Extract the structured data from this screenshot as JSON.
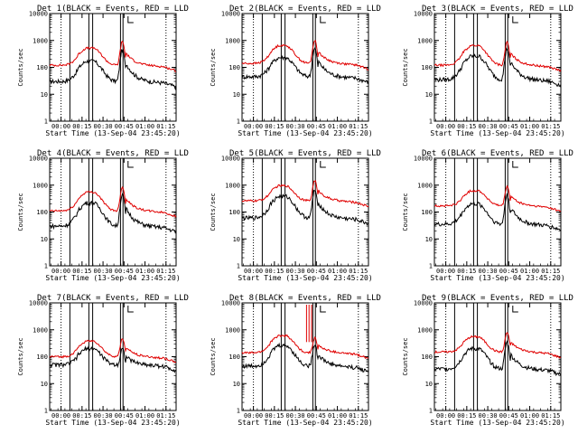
{
  "chart_data": [
    {
      "type": "line",
      "title": "Det 1(BLACK = Events, RED = LLD",
      "det": 1,
      "xlabel": "Start Time (13-Sep-04 23:45:20)",
      "ylabel": "Counts/sec",
      "ylim": [
        1,
        10000
      ],
      "yscale": "log",
      "ytick_labels": [
        "1",
        "10",
        "100",
        "1000",
        "10000"
      ],
      "xtick_labels": [
        "00:00",
        "00:15",
        "00:30",
        "00:45",
        "01:00",
        "01:15"
      ],
      "vlines_solid": [
        0.16,
        0.31,
        0.34,
        0.56,
        0.58
      ],
      "vlines_dotted": [
        0.09,
        0.92
      ],
      "series": [
        {
          "name": "Events",
          "color": "#000000",
          "base": 30,
          "hump": 170,
          "peak": 450
        },
        {
          "name": "LLD",
          "color": "#e00000",
          "base": 120,
          "hump": 520,
          "peak": 900
        }
      ]
    },
    {
      "type": "line",
      "title": "Det 2(BLACK = Events, RED = LLD",
      "det": 2,
      "xlabel": "Start Time (13-Sep-04 23:45:20)",
      "ylabel": "Counts/sec",
      "ylim": [
        1,
        10000
      ],
      "yscale": "log",
      "ytick_labels": [
        "1",
        "10",
        "100",
        "1000",
        "10000"
      ],
      "xtick_labels": [
        "00:00",
        "00:15",
        "00:30",
        "00:45",
        "01:00",
        "01:15"
      ],
      "vlines_solid": [
        0.16,
        0.31,
        0.34,
        0.56,
        0.58
      ],
      "vlines_dotted": [
        0.09,
        0.92
      ],
      "series": [
        {
          "name": "Events",
          "color": "#000000",
          "base": 45,
          "hump": 230,
          "peak": 500
        },
        {
          "name": "LLD",
          "color": "#e00000",
          "base": 140,
          "hump": 650,
          "peak": 1000
        }
      ]
    },
    {
      "type": "line",
      "title": "Det 3(BLACK = Events, RED = LLD",
      "det": 3,
      "xlabel": "Start Time (13-Sep-04 23:45:20)",
      "ylabel": "Counts/sec",
      "ylim": [
        1,
        10000
      ],
      "yscale": "log",
      "ytick_labels": [
        "1",
        "10",
        "100",
        "1000",
        "10000"
      ],
      "xtick_labels": [
        "00:00",
        "00:15",
        "00:30",
        "00:45",
        "01:00",
        "01:15"
      ],
      "vlines_solid": [
        0.16,
        0.31,
        0.34,
        0.56,
        0.58
      ],
      "vlines_dotted": [
        0.09,
        0.92
      ],
      "series": [
        {
          "name": "Events",
          "color": "#000000",
          "base": 35,
          "hump": 260,
          "peak": 500
        },
        {
          "name": "LLD",
          "color": "#e00000",
          "base": 120,
          "hump": 650,
          "peak": 850
        }
      ]
    },
    {
      "type": "line",
      "title": "Det 4(BLACK = Events, RED = LLD",
      "det": 4,
      "xlabel": "Start Time (13-Sep-04 23:45:20)",
      "ylabel": "Counts/sec",
      "ylim": [
        1,
        10000
      ],
      "yscale": "log",
      "ytick_labels": [
        "1",
        "10",
        "100",
        "1000",
        "10000"
      ],
      "xtick_labels": [
        "00:00",
        "00:15",
        "00:30",
        "00:45",
        "01:00",
        "01:15"
      ],
      "vlines_solid": [
        0.16,
        0.31,
        0.34,
        0.56,
        0.58
      ],
      "vlines_dotted": [
        0.09,
        0.92
      ],
      "series": [
        {
          "name": "Events",
          "color": "#000000",
          "base": 30,
          "hump": 220,
          "peak": 430
        },
        {
          "name": "LLD",
          "color": "#e00000",
          "base": 110,
          "hump": 550,
          "peak": 850
        }
      ]
    },
    {
      "type": "line",
      "title": "Det 5(BLACK = Events, RED = LLD",
      "det": 5,
      "xlabel": "Start Time (13-Sep-04 23:45:20)",
      "ylabel": "Counts/sec",
      "ylim": [
        1,
        10000
      ],
      "yscale": "log",
      "ytick_labels": [
        "1",
        "10",
        "100",
        "1000",
        "10000"
      ],
      "xtick_labels": [
        "00:00",
        "00:15",
        "00:30",
        "00:45",
        "01:00",
        "01:15"
      ],
      "vlines_solid": [
        0.16,
        0.31,
        0.34,
        0.56,
        0.58
      ],
      "vlines_dotted": [
        0.09,
        0.92
      ],
      "series": [
        {
          "name": "Events",
          "color": "#000000",
          "base": 60,
          "hump": 380,
          "peak": 650
        },
        {
          "name": "LLD",
          "color": "#e00000",
          "base": 260,
          "hump": 950,
          "peak": 1500
        }
      ]
    },
    {
      "type": "line",
      "title": "Det 6(BLACK = Events, RED = LLD",
      "det": 6,
      "xlabel": "Start Time (13-Sep-04 23:45:20)",
      "ylabel": "Counts/sec",
      "ylim": [
        1,
        10000
      ],
      "yscale": "log",
      "ytick_labels": [
        "1",
        "10",
        "100",
        "1000",
        "10000"
      ],
      "xtick_labels": [
        "00:00",
        "00:15",
        "00:30",
        "00:45",
        "01:00",
        "01:15"
      ],
      "vlines_solid": [
        0.16,
        0.31,
        0.34,
        0.56,
        0.58
      ],
      "vlines_dotted": [
        0.09,
        0.92
      ],
      "series": [
        {
          "name": "Events",
          "color": "#000000",
          "base": 35,
          "hump": 200,
          "peak": 430
        },
        {
          "name": "LLD",
          "color": "#e00000",
          "base": 170,
          "hump": 620,
          "peak": 900
        }
      ]
    },
    {
      "type": "line",
      "title": "Det 7(BLACK = Events, RED = LLD",
      "det": 7,
      "xlabel": "Start Time (13-Sep-04 23:45:20)",
      "ylabel": "Counts/sec",
      "ylim": [
        1,
        10000
      ],
      "yscale": "log",
      "ytick_labels": [
        "1",
        "10",
        "100",
        "1000",
        "10000"
      ],
      "xtick_labels": [
        "00:00",
        "00:15",
        "00:30",
        "00:45",
        "01:00",
        "01:15"
      ],
      "vlines_solid": [
        0.16,
        0.31,
        0.34,
        0.56,
        0.58
      ],
      "vlines_dotted": [
        0.09,
        0.92
      ],
      "series": [
        {
          "name": "Events",
          "color": "#000000",
          "base": 50,
          "hump": 200,
          "peak": 200
        },
        {
          "name": "LLD",
          "color": "#e00000",
          "base": 100,
          "hump": 380,
          "peak": 480
        }
      ]
    },
    {
      "type": "line",
      "title": "Det 8(BLACK = Events, RED = LLD",
      "det": 8,
      "xlabel": "Start Time (13-Sep-04 23:45:20)",
      "ylabel": "Counts/sec",
      "ylim": [
        1,
        10000
      ],
      "yscale": "log",
      "ytick_labels": [
        "1",
        "10",
        "100",
        "1000",
        "10000"
      ],
      "xtick_labels": [
        "00:00",
        "00:15",
        "00:30",
        "00:45",
        "01:00",
        "01:15"
      ],
      "vlines_solid": [
        0.16,
        0.31,
        0.34,
        0.56,
        0.58
      ],
      "vlines_dotted": [
        0.09,
        0.92
      ],
      "spikes_red": [
        0.51,
        0.53,
        0.55
      ],
      "series": [
        {
          "name": "Events",
          "color": "#000000",
          "base": 45,
          "hump": 260,
          "peak": 300
        },
        {
          "name": "LLD",
          "color": "#e00000",
          "base": 140,
          "hump": 600,
          "peak": 500
        }
      ]
    },
    {
      "type": "line",
      "title": "Det 9(BLACK = Events, RED = LLD",
      "det": 9,
      "xlabel": "Start Time (13-Sep-04 23:45:20)",
      "ylabel": "Counts/sec",
      "ylim": [
        1,
        10000
      ],
      "yscale": "log",
      "ytick_labels": [
        "1",
        "10",
        "100",
        "1000",
        "10000"
      ],
      "xtick_labels": [
        "00:00",
        "00:15",
        "00:30",
        "00:45",
        "01:00",
        "01:15"
      ],
      "vlines_solid": [
        0.16,
        0.31,
        0.34,
        0.56,
        0.58
      ],
      "vlines_dotted": [
        0.09,
        0.92
      ],
      "series": [
        {
          "name": "Events",
          "color": "#000000",
          "base": 35,
          "hump": 200,
          "peak": 350
        },
        {
          "name": "LLD",
          "color": "#e00000",
          "base": 150,
          "hump": 550,
          "peak": 800
        }
      ]
    }
  ]
}
